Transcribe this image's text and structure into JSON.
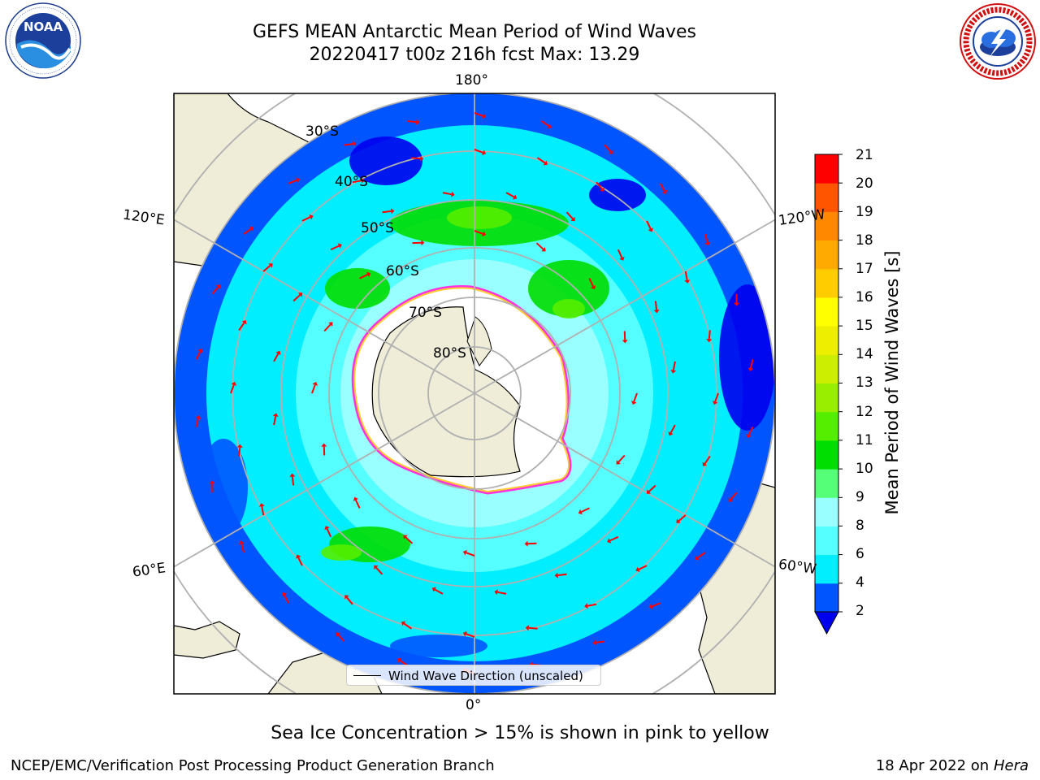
{
  "header": {
    "title_line1": "GEFS MEAN Antarctic Mean Period of Wind Waves",
    "title_line2": "20220417 t00z 216h fcst   Max: 13.29",
    "logo_left": "NOAA",
    "logo_left_ring_text": "NATIONAL OCEANIC AND ATMOSPHERIC ADMINISTRATION · U.S. DEPARTMENT OF COMMERCE",
    "logo_right_ring_text": "NATIONAL WEATHER SERVICE"
  },
  "map": {
    "projection": "South polar stereographic",
    "meridian_labels": {
      "top": "180°",
      "bottom": "0°",
      "left_upper": "120°E",
      "left_lower": "60°E",
      "right_upper": "120°W",
      "right_lower": "60°W"
    },
    "latitude_labels": [
      "30°S",
      "40°S",
      "50°S",
      "60°S",
      "70°S",
      "80°S"
    ],
    "legend_label": "Wind Wave Direction (unscaled)",
    "vector_color": "#ff0000"
  },
  "colorbar": {
    "label": "Mean Period of Wind Waves [s]",
    "ticks": [
      "2",
      "4",
      "6",
      "8",
      "9",
      "10",
      "11",
      "12",
      "13",
      "14",
      "15",
      "16",
      "17",
      "18",
      "19",
      "20",
      "21"
    ],
    "colors": [
      "#0055ff",
      "#00eeff",
      "#55ffff",
      "#99ffff",
      "#55ff77",
      "#00dd00",
      "#55ee00",
      "#99ee00",
      "#ccee00",
      "#eeee00",
      "#ffff00",
      "#ffcc00",
      "#ffaa00",
      "#ff8800",
      "#ff5500",
      "#ff0000"
    ],
    "under_color": "#0000ee",
    "max_value": 13.29
  },
  "colors": {
    "land": "#efedd8",
    "sea_ice_edge": [
      "#ff33dd",
      "#ffcc33"
    ],
    "gridline": "#b0b0b0"
  },
  "footer": {
    "sea_ice_note": "Sea Ice Concentration > 15% is shown in pink to yellow",
    "left": "NCEP/EMC/Verification Post Processing Product Generation Branch",
    "right_date": "18 Apr 2022 on",
    "right_host": "Hera"
  }
}
